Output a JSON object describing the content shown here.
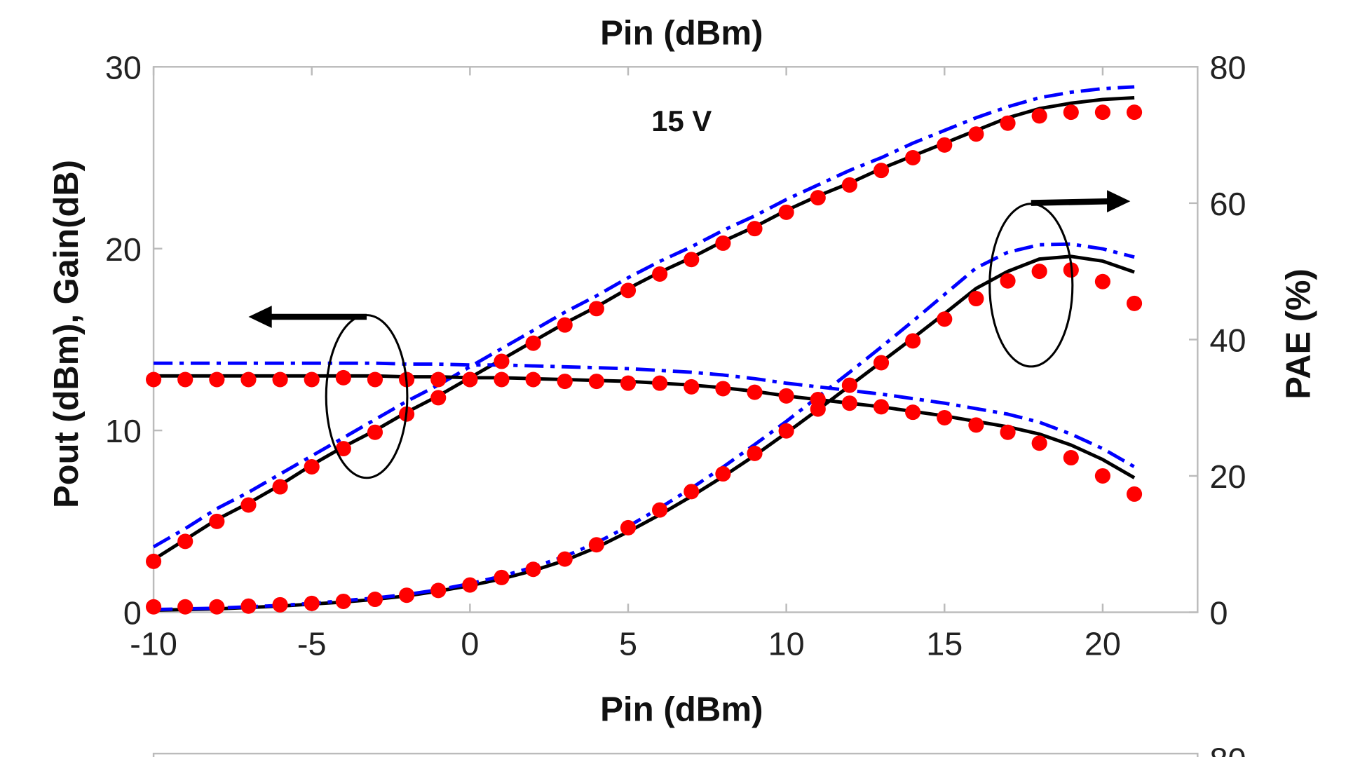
{
  "chart_data": {
    "type": "line",
    "top_label": "Pin (dBm)",
    "xlabel": "Pin (dBm)",
    "ylabel_left": "Pout (dBm), Gain(dB)",
    "ylabel_right": "PAE (%)",
    "annotation": "15 V",
    "xlim": [
      -10,
      23
    ],
    "ylim_left": [
      0,
      30
    ],
    "ylim_right": [
      0,
      80
    ],
    "xticks": [
      "-10",
      "-5",
      "0",
      "5",
      "10",
      "15",
      "20"
    ],
    "xtick_values": [
      -10,
      -5,
      0,
      5,
      10,
      15,
      20
    ],
    "yticks_left": [
      "0",
      "10",
      "20",
      "30"
    ],
    "yticks_right": [
      "0",
      "20",
      "40",
      "60",
      "80"
    ],
    "next_panel_tick": "80",
    "grid": false,
    "x": [
      -10,
      -9,
      -8,
      -7,
      -6,
      -5,
      -4,
      -3,
      -2,
      -1,
      0,
      1,
      2,
      3,
      4,
      5,
      6,
      7,
      8,
      9,
      10,
      11,
      12,
      13,
      14,
      15,
      16,
      17,
      18,
      19,
      20,
      21
    ],
    "series": [
      {
        "quantity": "Pout",
        "axis": "left",
        "style": "dots",
        "color": "#ff0000",
        "values": [
          2.8,
          3.9,
          5.0,
          5.9,
          6.9,
          8.0,
          9.0,
          9.9,
          10.9,
          11.8,
          12.8,
          13.8,
          14.8,
          15.8,
          16.7,
          17.7,
          18.6,
          19.4,
          20.3,
          21.1,
          22.0,
          22.8,
          23.5,
          24.3,
          25.0,
          25.7,
          26.3,
          26.9,
          27.3,
          27.5,
          27.5,
          27.5
        ]
      },
      {
        "quantity": "Pout",
        "axis": "left",
        "style": "solid",
        "color": "#000000",
        "values": [
          2.9,
          4.0,
          5.1,
          6.0,
          7.0,
          8.1,
          9.1,
          10.0,
          11.0,
          11.9,
          12.9,
          13.9,
          14.9,
          15.9,
          16.8,
          17.8,
          18.7,
          19.5,
          20.4,
          21.2,
          22.1,
          22.9,
          23.6,
          24.4,
          25.1,
          25.8,
          26.5,
          27.2,
          27.7,
          28.0,
          28.2,
          28.3
        ]
      },
      {
        "quantity": "Pout",
        "axis": "left",
        "style": "dashdot",
        "color": "#0000ff",
        "values": [
          3.6,
          4.6,
          5.7,
          6.6,
          7.6,
          8.6,
          9.6,
          10.6,
          11.6,
          12.5,
          13.5,
          14.5,
          15.5,
          16.5,
          17.4,
          18.4,
          19.3,
          20.1,
          21.0,
          21.8,
          22.7,
          23.5,
          24.3,
          25.0,
          25.8,
          26.5,
          27.2,
          27.8,
          28.3,
          28.6,
          28.8,
          28.9
        ]
      },
      {
        "quantity": "Gain",
        "axis": "left",
        "style": "dots",
        "color": "#ff0000",
        "values": [
          12.8,
          12.8,
          12.8,
          12.8,
          12.8,
          12.8,
          12.9,
          12.8,
          12.8,
          12.8,
          12.8,
          12.8,
          12.8,
          12.7,
          12.7,
          12.6,
          12.6,
          12.4,
          12.3,
          12.1,
          11.9,
          11.7,
          11.5,
          11.3,
          11.0,
          10.7,
          10.3,
          9.9,
          9.3,
          8.5,
          7.5,
          6.5
        ]
      },
      {
        "quantity": "Gain",
        "axis": "left",
        "style": "solid",
        "color": "#000000",
        "values": [
          13.0,
          13.0,
          13.0,
          13.0,
          13.0,
          13.0,
          13.0,
          13.0,
          12.95,
          12.95,
          12.9,
          12.9,
          12.85,
          12.8,
          12.75,
          12.7,
          12.6,
          12.5,
          12.35,
          12.15,
          11.9,
          11.7,
          11.5,
          11.3,
          11.05,
          10.8,
          10.5,
          10.2,
          9.8,
          9.2,
          8.4,
          7.4
        ]
      },
      {
        "quantity": "Gain",
        "axis": "left",
        "style": "dashdot",
        "color": "#0000ff",
        "values": [
          13.7,
          13.7,
          13.7,
          13.7,
          13.7,
          13.7,
          13.7,
          13.7,
          13.65,
          13.65,
          13.6,
          13.6,
          13.55,
          13.5,
          13.45,
          13.4,
          13.3,
          13.2,
          13.05,
          12.85,
          12.6,
          12.4,
          12.2,
          12.0,
          11.75,
          11.5,
          11.2,
          10.9,
          10.45,
          9.8,
          9.0,
          8.0
        ]
      },
      {
        "quantity": "PAE",
        "axis": "right",
        "style": "dots",
        "color": "#ff0000",
        "values": [
          0.8,
          0.8,
          0.8,
          0.9,
          1.1,
          1.3,
          1.6,
          1.9,
          2.5,
          3.2,
          4.0,
          5.1,
          6.3,
          7.8,
          9.9,
          12.4,
          15.0,
          17.7,
          20.3,
          23.3,
          26.6,
          29.8,
          33.3,
          36.6,
          39.8,
          43.0,
          46.0,
          48.6,
          50.0,
          50.2,
          48.5,
          45.3
        ]
      },
      {
        "quantity": "PAE",
        "axis": "right",
        "style": "solid",
        "color": "#000000",
        "values": [
          0.3,
          0.4,
          0.5,
          0.7,
          0.9,
          1.2,
          1.5,
          1.9,
          2.4,
          3.1,
          3.9,
          4.9,
          6.1,
          7.6,
          9.5,
          11.8,
          14.3,
          17.0,
          19.9,
          23.0,
          26.3,
          29.7,
          33.2,
          36.7,
          40.2,
          43.8,
          47.5,
          50.0,
          51.8,
          52.2,
          51.5,
          49.9
        ]
      },
      {
        "quantity": "PAE",
        "axis": "right",
        "style": "dashdot",
        "color": "#0000ff",
        "values": [
          0.4,
          0.5,
          0.6,
          0.8,
          1.0,
          1.3,
          1.7,
          2.1,
          2.6,
          3.3,
          4.2,
          5.3,
          6.6,
          8.2,
          10.2,
          12.6,
          15.3,
          18.2,
          21.3,
          24.6,
          28.0,
          31.6,
          35.2,
          38.9,
          42.7,
          46.6,
          50.5,
          52.8,
          53.9,
          54.0,
          53.3,
          52.1
        ]
      }
    ]
  }
}
